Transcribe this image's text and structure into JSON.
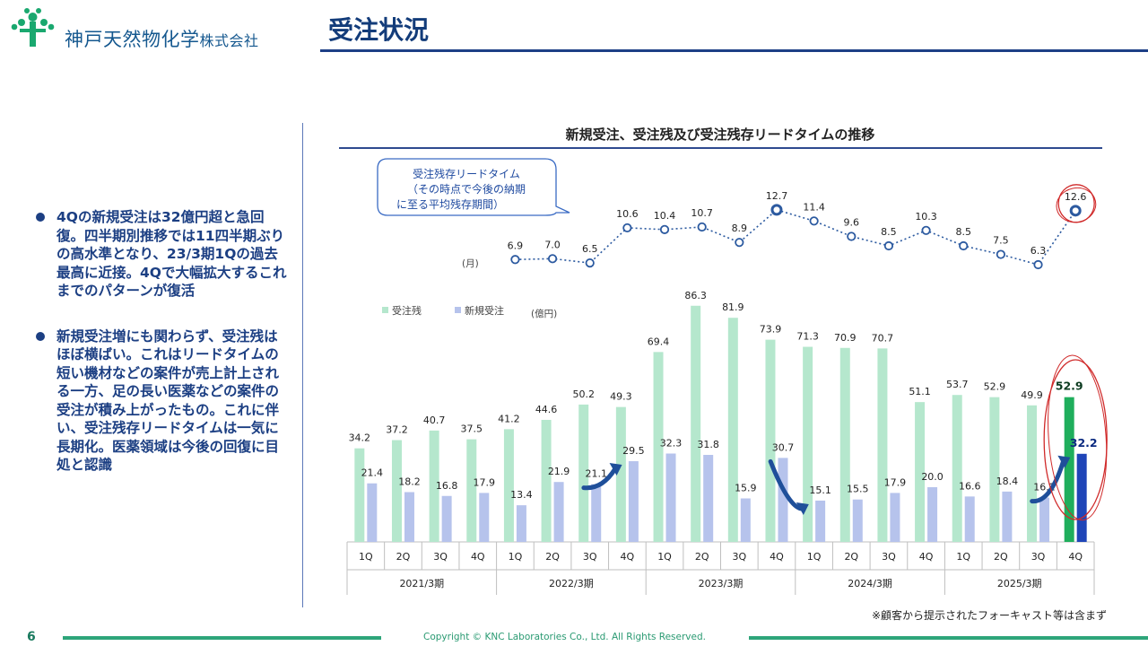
{
  "header": {
    "company_name": "神戸天然物化学",
    "company_suffix": "株式会社",
    "title": "受注状況"
  },
  "bullets": [
    {
      "text": "4Qの新規受注は32億円超と急回復。四半期別推移では11四半期ぶりの高水準となり、23/3期1Qの過去最高に近接。4Qで大幅拡大するこれまでのパターンが復活"
    },
    {
      "text": "新規受注増にも関わらず、受注残はほぼ横ばい。これはリードタイムの短い機材などの案件が売上計上される一方、足の長い医薬などの案件の受注が積み上がったもの。これに伴い、受注残存リードタイムは一気に長期化。医薬領域は今後の回復に目処と認識"
    }
  ],
  "chart_title": "新規受注、受注残及び受注残存リードタイムの推移",
  "callout": {
    "line1": "受注残存リードタイム",
    "line2": "（その時点で今後の納期",
    "line3": "に至る平均残存期間）"
  },
  "footnote": "※顧客から提示されたフォーキャスト等は含まず",
  "footer": {
    "page": "6",
    "copyright": "Copyright © KNC Laboratories Co., Ltd. All Rights Reserved."
  },
  "colors": {
    "backlog": "#b5e7cd",
    "new_orders": "#b6c3ec",
    "backlog_highlight": "#1fae5c",
    "new_orders_highlight": "#1f45b8",
    "line": "#2c5aa0",
    "circle": "#d02a2a",
    "accent": "#1c3f83"
  },
  "chart_data": {
    "type": "bar",
    "quarters": [
      "1Q",
      "2Q",
      "3Q",
      "4Q",
      "1Q",
      "2Q",
      "3Q",
      "4Q",
      "1Q",
      "2Q",
      "3Q",
      "4Q",
      "1Q",
      "2Q",
      "3Q",
      "4Q",
      "1Q",
      "2Q",
      "3Q",
      "4Q"
    ],
    "years": [
      "2021/3期",
      "2022/3期",
      "2023/3期",
      "2024/3期",
      "2025/3期"
    ],
    "unit": "(億円)",
    "series": [
      {
        "name": "受注残",
        "values": [
          34.2,
          37.2,
          40.7,
          37.5,
          41.2,
          44.6,
          50.2,
          49.3,
          69.4,
          86.3,
          81.9,
          73.9,
          71.3,
          70.9,
          70.7,
          51.1,
          53.7,
          52.9,
          49.9,
          52.9
        ]
      },
      {
        "name": "新規受注",
        "values": [
          21.4,
          18.2,
          16.8,
          17.9,
          13.4,
          21.9,
          21.1,
          29.5,
          32.3,
          31.8,
          15.9,
          30.7,
          15.1,
          15.5,
          17.9,
          20.0,
          16.6,
          18.4,
          16.2,
          32.2
        ]
      }
    ],
    "lead_time": {
      "unit": "(月)",
      "start_index": 4,
      "values": [
        6.9,
        7.0,
        6.5,
        10.6,
        10.4,
        10.7,
        8.9,
        12.7,
        11.4,
        9.6,
        8.5,
        10.3,
        8.5,
        7.5,
        6.3,
        12.6
      ],
      "highlight_indices": [
        7,
        15
      ]
    },
    "highlighted_quarter_index": 19,
    "growth_arrow_indices": [
      6,
      11,
      18
    ]
  }
}
